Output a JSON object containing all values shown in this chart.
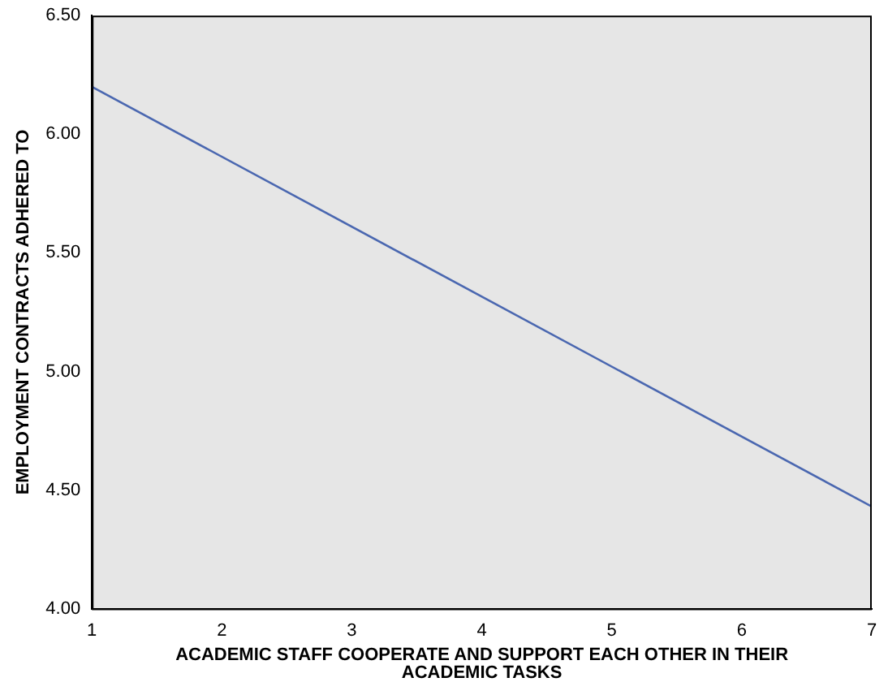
{
  "chart_data": {
    "type": "line",
    "xlabel": "ACADEMIC STAFF COOPERATE AND SUPPORT EACH OTHER IN THEIR ACADEMIC TASKS",
    "ylabel": "EMPLOYMENT CONTRACTS ADHERED TO",
    "x": [
      1,
      7
    ],
    "series": [
      {
        "color": "#4a67b0",
        "values": [
          6.2,
          4.43
        ]
      }
    ],
    "xlim": [
      1,
      7
    ],
    "xticks": [
      1,
      2,
      3,
      4,
      5,
      6,
      7
    ],
    "ylim": [
      4.0,
      6.5
    ],
    "yticks": [
      {
        "value": 4.0,
        "label": "4.00"
      },
      {
        "value": 4.5,
        "label": "4.50"
      },
      {
        "value": 5.0,
        "label": "5.00"
      },
      {
        "value": 5.5,
        "label": "5.50"
      },
      {
        "value": 6.0,
        "label": "6.00"
      },
      {
        "value": 6.5,
        "label": "6.50"
      }
    ],
    "grid": false,
    "legend": false,
    "marker": "none",
    "line_style": "solid"
  }
}
